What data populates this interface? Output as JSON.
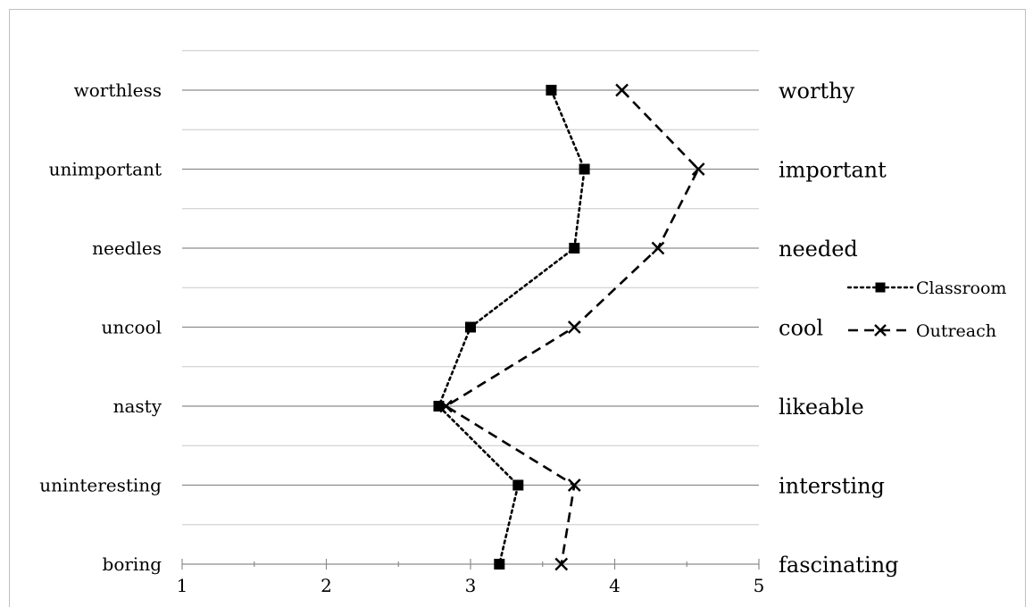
{
  "chart_data": {
    "type": "line",
    "title": "",
    "xlabel": "",
    "ylabel": "",
    "xlim": [
      1,
      5
    ],
    "x_ticks": [
      1,
      2,
      3,
      4,
      5
    ],
    "grid": true,
    "legend_position": "right",
    "left_labels": [
      "worthless",
      "unimportant",
      "needles",
      "uncool",
      "nasty",
      "uninteresting",
      "boring"
    ],
    "right_labels": [
      "worthy",
      "important",
      "needed",
      "cool",
      "likeable",
      "intersting",
      "fascinating"
    ],
    "series": [
      {
        "name": "Classroom",
        "marker": "square",
        "line_style": "dotted",
        "color": "#000000",
        "values": [
          3.56,
          3.79,
          3.72,
          3.0,
          2.78,
          3.33,
          3.2
        ]
      },
      {
        "name": "Outreach",
        "marker": "x",
        "line_style": "dashed",
        "color": "#000000",
        "values": [
          4.05,
          4.58,
          4.3,
          3.72,
          2.83,
          3.72,
          3.63
        ]
      }
    ]
  }
}
